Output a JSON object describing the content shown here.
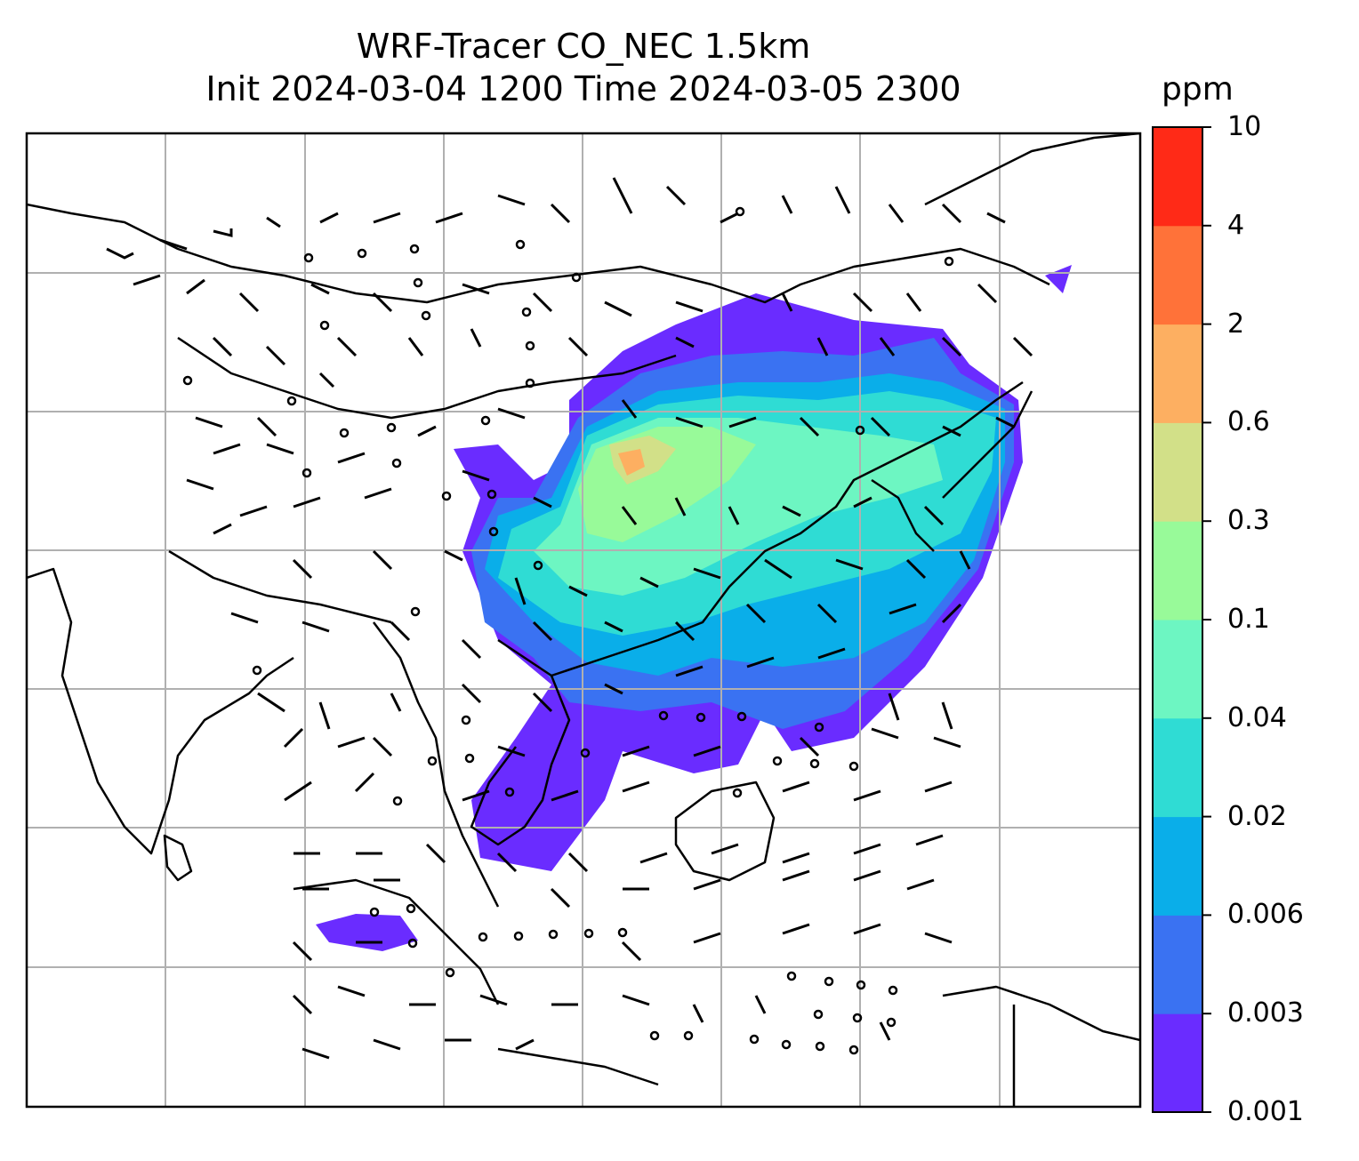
{
  "title": {
    "line1": "WRF-Tracer CO_NEC 1.5km",
    "line2": "Init 2024-03-04 1200 Time 2024-03-05 2300"
  },
  "colorbar": {
    "unit": "ppm",
    "levels": [
      "0.001",
      "0.003",
      "0.006",
      "0.02",
      "0.04",
      "0.1",
      "0.3",
      "0.6",
      "2",
      "4",
      "10"
    ],
    "colors": [
      "#6a2cff",
      "#3a72f2",
      "#0aaee9",
      "#2fdcd4",
      "#6df6c2",
      "#98fa99",
      "#d2e088",
      "#fdaf61",
      "#ff7239",
      "#ff2a17"
    ]
  },
  "map": {
    "gridlines": true,
    "wind_barbs": true,
    "tracer_field": "CO_NEC"
  }
}
